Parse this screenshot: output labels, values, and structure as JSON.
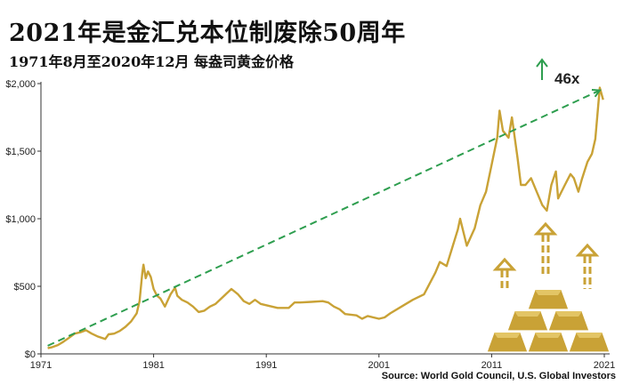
{
  "title": "2021年是金汇兑本位制废除50周年",
  "subtitle": "1971年8月至2020年12月 每盎司黄金价格",
  "source": "Source: World Gold Council, U.S. Global Investors",
  "colors": {
    "price_line": "#C9A236",
    "trend": "#2E9E4F",
    "gold_bar": "#C9A236",
    "arrow": "#C9A236"
  },
  "icons": [
    "gold-bars-icon",
    "up-arrow-icon"
  ],
  "chart_data": {
    "type": "line",
    "title": "2021年是金汇兑本位制废除50周年",
    "subtitle": "1971年8月至2020年12月 每盎司黄金价格",
    "xlabel": "",
    "ylabel": "",
    "xlim": [
      1971,
      2021
    ],
    "ylim": [
      0,
      2000
    ],
    "x_ticks": [
      1971,
      1981,
      1991,
      2001,
      2011,
      2021
    ],
    "x_tick_labels": [
      "1971",
      "1981",
      "1991",
      "2001",
      "2011",
      "2021"
    ],
    "y_ticks": [
      0,
      500,
      1000,
      1500,
      2000
    ],
    "y_tick_labels": [
      "$0",
      "$500",
      "$1,000",
      "$1,500",
      "$2,000"
    ],
    "grid": false,
    "series": [
      {
        "x": [
          1971.6,
          1972.0,
          1972.5,
          1973.0,
          1973.5,
          1974.0,
          1974.5,
          1975.0,
          1975.5,
          1976.0,
          1976.7,
          1977.0,
          1977.5,
          1978.0,
          1978.5,
          1979.0,
          1979.5,
          1979.75,
          1980.0,
          1980.1,
          1980.3,
          1980.5,
          1980.75,
          1981.0,
          1981.3,
          1981.6,
          1982.0,
          1982.5,
          1982.9,
          1983.1,
          1983.5,
          1984.0,
          1984.5,
          1985.0,
          1985.5,
          1986.0,
          1986.5,
          1987.0,
          1987.9,
          1988.5,
          1989.0,
          1989.5,
          1990.0,
          1990.5,
          1991.0,
          1992.0,
          1993.0,
          1993.5,
          1994.0,
          1995.0,
          1996.0,
          1996.5,
          1997.0,
          1997.5,
          1998.0,
          1999.0,
          1999.5,
          2000.0,
          2001.0,
          2001.5,
          2002.0,
          2003.0,
          2004.0,
          2005.0,
          2006.0,
          2006.4,
          2007.0,
          2008.0,
          2008.2,
          2008.8,
          2009.5,
          2010.0,
          2010.5,
          2011.0,
          2011.5,
          2011.7,
          2012.0,
          2012.5,
          2012.8,
          2013.3,
          2013.6,
          2014.0,
          2014.5,
          2015.0,
          2015.5,
          2015.9,
          2016.3,
          2016.7,
          2016.9,
          2017.5,
          2018.0,
          2018.3,
          2018.7,
          2019.0,
          2019.5,
          2019.9,
          2020.2,
          2020.6,
          2020.9
        ],
        "y": [
          42,
          50,
          65,
          90,
          120,
          150,
          160,
          175,
          150,
          130,
          110,
          145,
          150,
          170,
          200,
          240,
          300,
          390,
          600,
          660,
          560,
          610,
          570,
          480,
          430,
          410,
          350,
          440,
          490,
          430,
          400,
          380,
          350,
          310,
          320,
          350,
          370,
          410,
          480,
          440,
          390,
          370,
          400,
          370,
          360,
          340,
          340,
          380,
          380,
          385,
          390,
          380,
          350,
          330,
          295,
          285,
          260,
          280,
          260,
          270,
          300,
          350,
          400,
          440,
          600,
          680,
          650,
          920,
          1000,
          800,
          930,
          1100,
          1200,
          1400,
          1600,
          1800,
          1650,
          1600,
          1750,
          1450,
          1250,
          1250,
          1300,
          1200,
          1100,
          1060,
          1250,
          1350,
          1150,
          1250,
          1330,
          1300,
          1200,
          1290,
          1420,
          1480,
          1590,
          1970,
          1880
        ]
      },
      {
        "x": [
          1971.6,
          2020.6
        ],
        "y": [
          60,
          1950
        ]
      }
    ],
    "annotations": [
      {
        "text": "46x",
        "x": 2018.5,
        "y": 2050
      }
    ]
  }
}
